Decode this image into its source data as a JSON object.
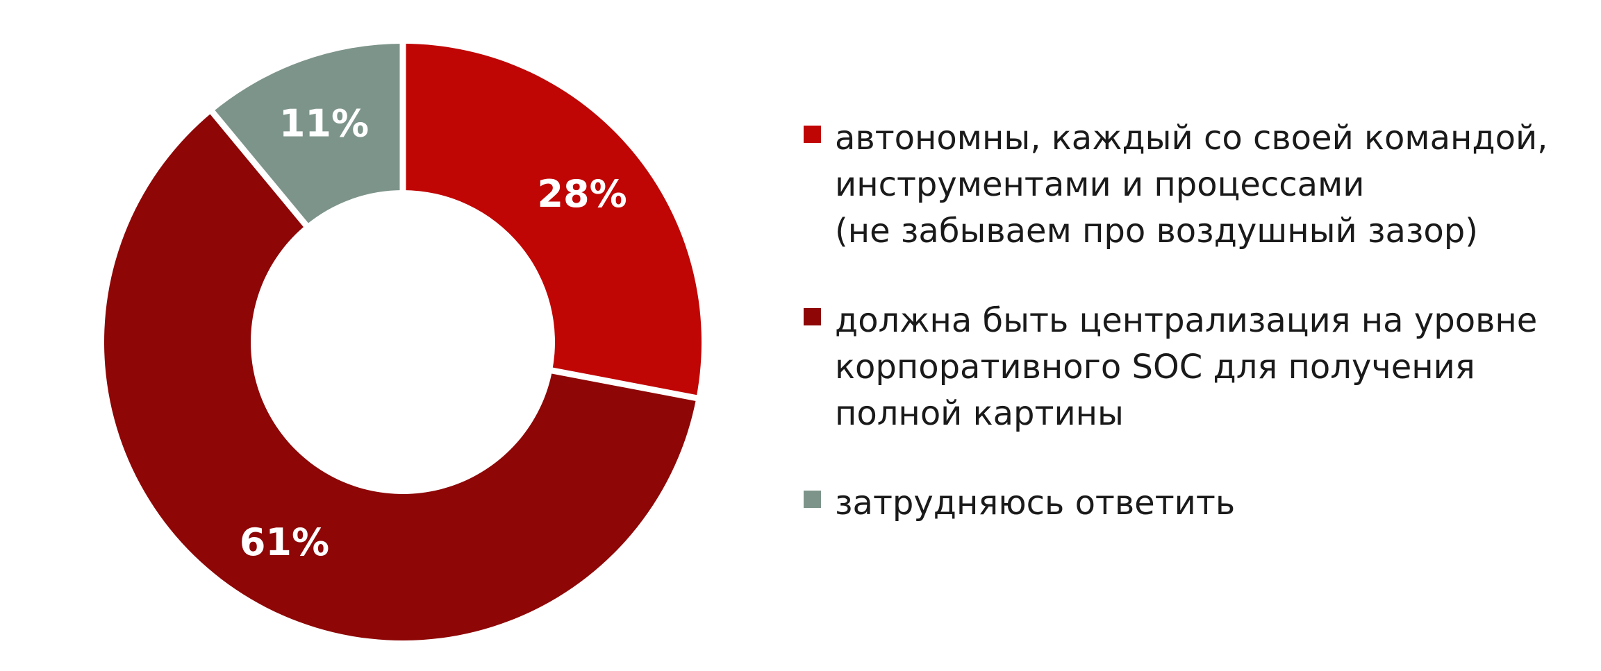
{
  "background_color": "#FFFFFF",
  "chart_data": {
    "type": "pie",
    "subtype": "donut",
    "title": "",
    "units": "percent",
    "start_angle_deg": 0,
    "direction": "clockwise",
    "inner_radius_ratio": 0.51,
    "label_color": "#FFFFFF",
    "separator_color": "#FFFFFF",
    "legend_position": "right",
    "slices": [
      {
        "value": 28,
        "label": "28%",
        "color": "#C00505",
        "legend": "автономны, каждый со своей командой, инструментами и процессами (не забываем про воздушный зазор)"
      },
      {
        "value": 61,
        "label": "61%",
        "color": "#8E0606",
        "legend": "должна быть централизация на уровне корпоративного SOC для получения полной картины"
      },
      {
        "value": 11,
        "label": "11%",
        "color": "#7D948A",
        "legend": "затрудняюсь ответить"
      }
    ]
  },
  "legend": {
    "text_color": "#1A1A1A",
    "items": [
      {
        "swatch_color": "#C00505",
        "lines": [
          "автономны, каждый со своей командой,",
          "инструментами и процессами",
          "(не забываем про воздушный зазор)"
        ]
      },
      {
        "swatch_color": "#8E0606",
        "lines": [
          "должна быть централизация на уровне",
          "корпоративного SOC для получения",
          "полной картины"
        ]
      },
      {
        "swatch_color": "#7D948A",
        "lines": [
          "затрудняюсь ответить"
        ]
      }
    ]
  }
}
